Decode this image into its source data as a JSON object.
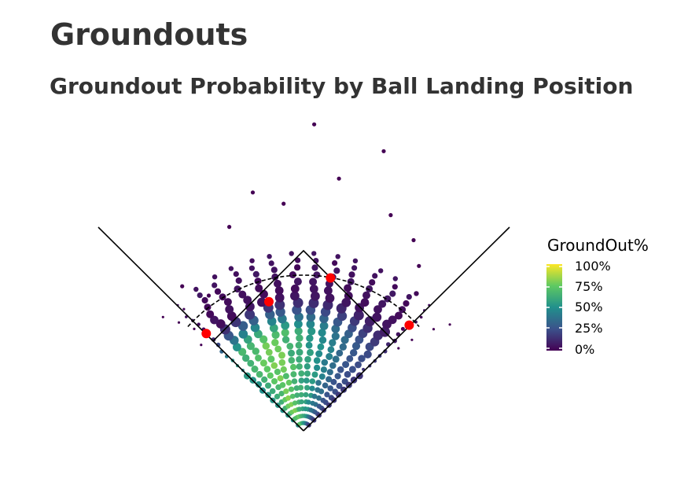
{
  "title": "Groundouts",
  "subtitle": "Groundout Probability by Ball Landing Position",
  "chart_data": {
    "type": "scatter",
    "description_text": "",
    "legend": {
      "title": "GroundOut%",
      "ticks": [
        "100%",
        "75%",
        "50%",
        "25%",
        "0%"
      ],
      "tick_values": [
        1.0,
        0.75,
        0.5,
        0.25,
        0.0
      ],
      "colorscale": [
        "#440154",
        "#3b528b",
        "#21908c",
        "#5ec962",
        "#fde725"
      ]
    },
    "fielder_positions": [
      {
        "angle_deg": 135,
        "distance": 0.7
      },
      {
        "angle_deg": 105,
        "distance": 0.68
      },
      {
        "angle_deg": 80,
        "distance": 0.79
      },
      {
        "angle_deg": 45,
        "distance": 0.76
      }
    ],
    "series": [
      {
        "name": "groundout_probability_by_direction",
        "angles_deg": [
          135,
          128,
          121,
          114,
          107,
          100,
          93,
          86,
          79,
          72,
          65,
          58,
          51,
          45
        ],
        "peak_probability": [
          0.55,
          0.68,
          0.78,
          0.82,
          0.8,
          0.72,
          0.65,
          0.6,
          0.55,
          0.45,
          0.38,
          0.3,
          0.25,
          0.18
        ]
      }
    ],
    "outfield_outliers": [
      {
        "angle": 88,
        "dist": 1.95
      },
      {
        "angle": 74,
        "dist": 1.85
      },
      {
        "angle": 102,
        "dist": 1.55
      },
      {
        "angle": 95,
        "dist": 1.45
      },
      {
        "angle": 82,
        "dist": 1.62
      },
      {
        "angle": 68,
        "dist": 1.48
      },
      {
        "angle": 110,
        "dist": 1.38
      },
      {
        "angle": 125,
        "dist": 1.05
      },
      {
        "angle": 130,
        "dist": 1.2
      },
      {
        "angle": 55,
        "dist": 1.28
      },
      {
        "angle": 60,
        "dist": 1.4
      }
    ]
  }
}
